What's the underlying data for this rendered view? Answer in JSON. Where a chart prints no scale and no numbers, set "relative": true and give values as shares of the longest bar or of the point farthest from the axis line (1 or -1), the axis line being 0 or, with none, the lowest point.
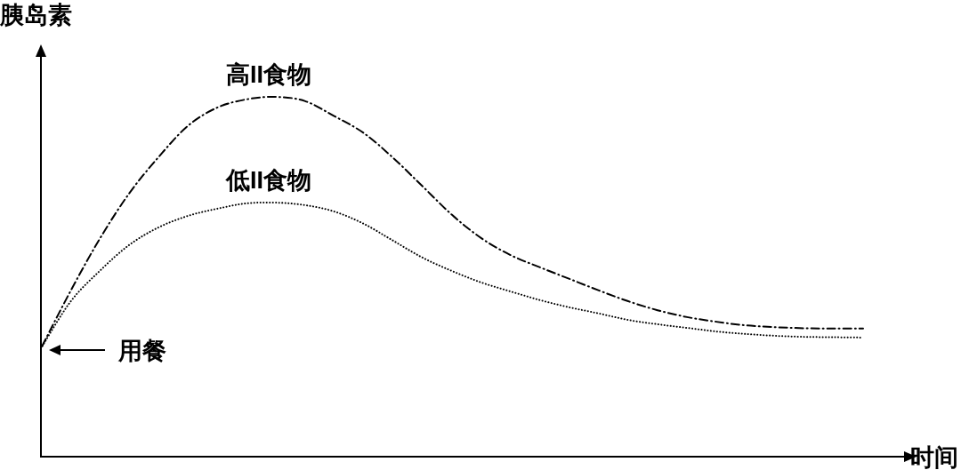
{
  "chart_data": {
    "type": "line",
    "xlabel": "时间",
    "ylabel": "胰岛素",
    "relative": true,
    "legend": false,
    "categories": [
      null,
      null,
      null,
      null,
      null,
      null,
      null,
      null,
      null,
      null,
      null,
      null,
      null,
      null,
      null,
      null,
      null,
      null,
      null,
      null,
      null,
      null,
      null,
      null,
      null,
      null,
      null,
      null,
      null
    ],
    "series": [
      {
        "name": "高II食物",
        "color": "#000000",
        "line_style": "dashdot",
        "values": [
          0.301,
          0.459,
          0.605,
          0.731,
          0.832,
          0.919,
          0.97,
          0.993,
          1.0,
          0.988,
          0.946,
          0.899,
          0.83,
          0.751,
          0.672,
          0.607,
          0.56,
          0.526,
          0.494,
          0.462,
          0.432,
          0.407,
          0.388,
          0.375,
          0.365,
          0.36,
          0.357,
          0.356,
          0.356
        ]
      },
      {
        "name": "低II食物",
        "color": "#000000",
        "line_style": "dotted",
        "values": [
          0.301,
          0.43,
          0.516,
          0.588,
          0.637,
          0.669,
          0.689,
          0.704,
          0.706,
          0.699,
          0.681,
          0.647,
          0.6,
          0.553,
          0.516,
          0.484,
          0.459,
          0.435,
          0.415,
          0.398,
          0.38,
          0.368,
          0.358,
          0.348,
          0.341,
          0.336,
          0.333,
          0.332,
          0.331
        ]
      }
    ],
    "annotations": [
      "用餐"
    ]
  }
}
